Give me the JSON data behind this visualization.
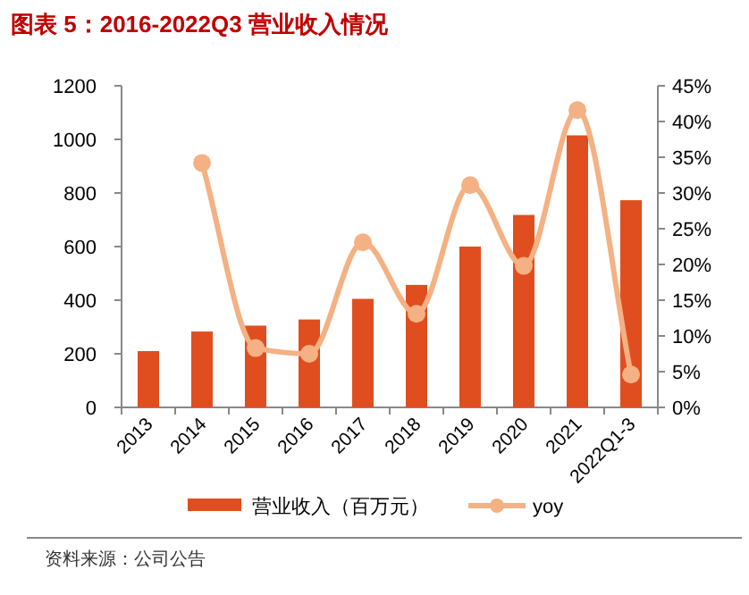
{
  "chart_data": {
    "type": "bar",
    "title": "图表 5：2016-2022Q3 营业收入情况",
    "categories": [
      "2013",
      "2014",
      "2015",
      "2016",
      "2017",
      "2018",
      "2019",
      "2020",
      "2021",
      "2022Q1-3"
    ],
    "series": [
      {
        "name": "营业收入（百万元）",
        "color": "#e04e1f",
        "values": [
          210,
          283,
          305,
          328,
          405,
          457,
          600,
          718,
          1015,
          773
        ]
      },
      {
        "name": "yoy",
        "type": "line",
        "axis": "y2",
        "color": "#f4b183",
        "marker": "circle",
        "values": [
          null,
          34.2,
          8.3,
          7.5,
          23.1,
          13.1,
          31.1,
          19.8,
          41.6,
          4.6
        ]
      }
    ],
    "ylim": [
      0,
      1200
    ],
    "yticks": [
      0,
      200,
      400,
      600,
      800,
      1000,
      1200
    ],
    "y2lim": [
      0,
      45
    ],
    "y2ticks": [
      {
        "value": 0,
        "label": "0%"
      },
      {
        "value": 5,
        "label": "5%"
      },
      {
        "value": 10,
        "label": "10%"
      },
      {
        "value": 15,
        "label": "15%"
      },
      {
        "value": 20,
        "label": "20%"
      },
      {
        "value": 25,
        "label": "25%"
      },
      {
        "value": 30,
        "label": "30%"
      },
      {
        "value": 35,
        "label": "35%"
      },
      {
        "value": 40,
        "label": "40%"
      },
      {
        "value": 45,
        "label": "45%"
      }
    ],
    "legend": "bottom",
    "grid": false,
    "annotations": [
      "资料来源：公司公告"
    ]
  }
}
